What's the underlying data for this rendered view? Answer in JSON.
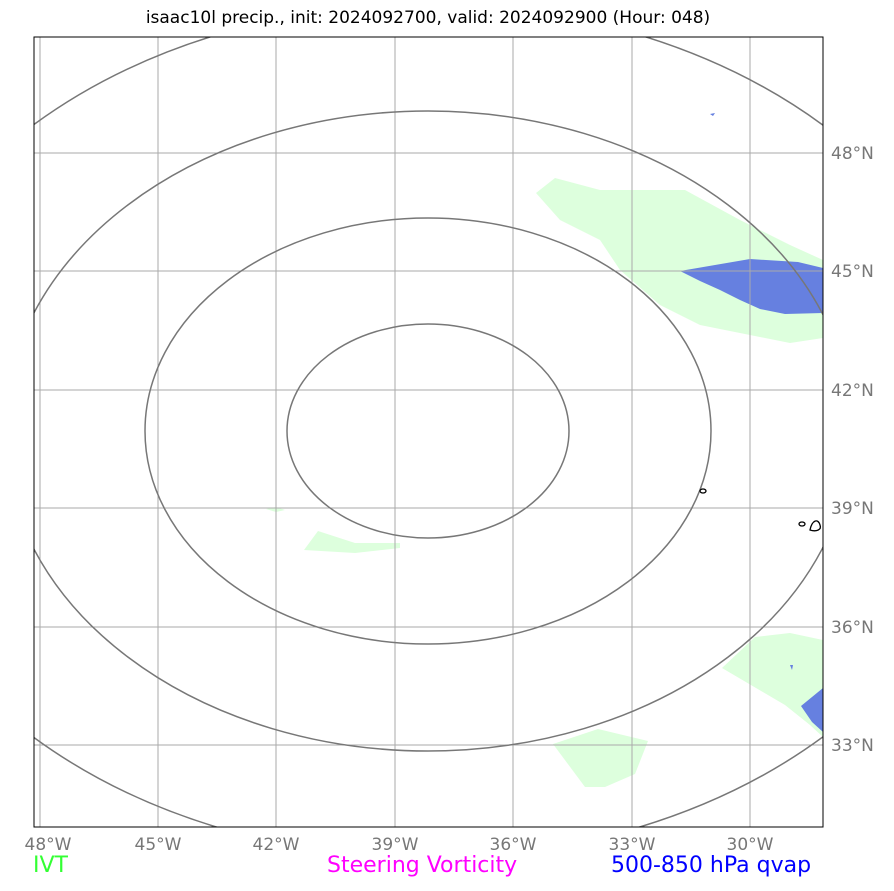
{
  "title": "isaac10l precip., init: 2024092700, valid: 2024092900 (Hour: 048)",
  "lat_labels": [
    "48°N",
    "45°N",
    "42°N",
    "39°N",
    "36°N",
    "33°N"
  ],
  "lon_labels": [
    "48°W",
    "45°W",
    "42°W",
    "39°W",
    "36°W",
    "33°W",
    "30°W"
  ],
  "legend": {
    "ivt": {
      "label": "IVT",
      "color": "#33ff33"
    },
    "vorticity": {
      "label": "Steering Vorticity",
      "color": "#ff00ff"
    },
    "qvap": {
      "label": "500-850 hPa qvap",
      "color": "#0000ff"
    }
  },
  "colors": {
    "light_precip": "#ddffdd",
    "heavy_precip": "#6680e0",
    "gridline": "#aaaaaa",
    "rings": "#777777",
    "tick_label": "#777777"
  }
}
